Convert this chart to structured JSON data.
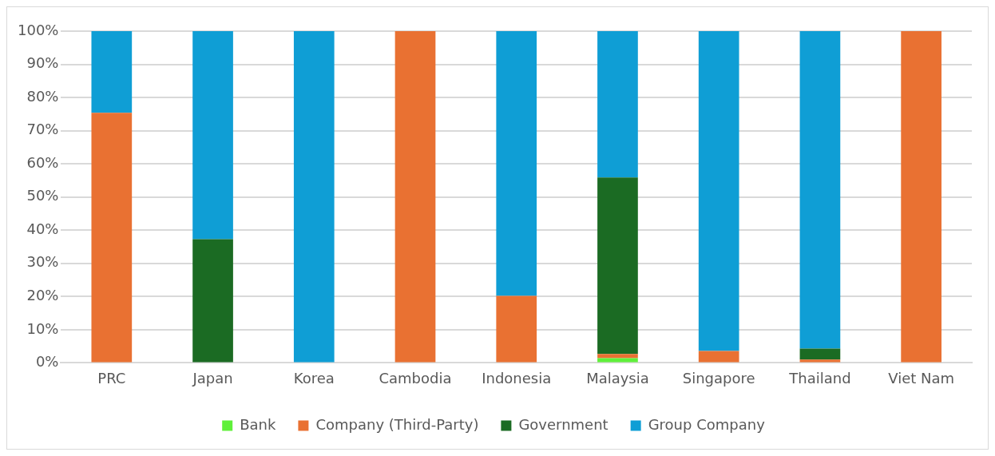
{
  "chart_data": {
    "type": "bar",
    "stacked": true,
    "categories": [
      "PRC",
      "Japan",
      "Korea",
      "Cambodia",
      "Indonesia",
      "Malaysia",
      "Singapore",
      "Thailand",
      "Viet Nam"
    ],
    "series": [
      {
        "name": "Bank",
        "color": "#5ff03a",
        "values": [
          0,
          0,
          0,
          0,
          0,
          1.4,
          0,
          0,
          0
        ]
      },
      {
        "name": "Company (Third-Party)",
        "color": "#e97132",
        "values": [
          75.4,
          0,
          0,
          100,
          20.2,
          1.3,
          3.6,
          1,
          100
        ]
      },
      {
        "name": "Government",
        "color": "#1b6b23",
        "values": [
          0,
          37.3,
          0,
          0,
          0,
          53.2,
          0,
          3.3,
          0
        ]
      },
      {
        "name": "Group Company",
        "color": "#0f9ed5",
        "values": [
          24.6,
          62.7,
          100,
          0,
          79.8,
          44.1,
          96.4,
          95.7,
          0
        ]
      }
    ],
    "ylim": [
      0,
      100
    ],
    "yticks": [
      {
        "value": 0,
        "label": "0%"
      },
      {
        "value": 10,
        "label": "10%"
      },
      {
        "value": 20,
        "label": "20%"
      },
      {
        "value": 30,
        "label": "30%"
      },
      {
        "value": 40,
        "label": "40%"
      },
      {
        "value": 50,
        "label": "50%"
      },
      {
        "value": 60,
        "label": "60%"
      },
      {
        "value": 70,
        "label": "70%"
      },
      {
        "value": 80,
        "label": "80%"
      },
      {
        "value": 90,
        "label": "90%"
      },
      {
        "value": 100,
        "label": "100%"
      }
    ],
    "grid": "y",
    "legend": "bottom"
  }
}
